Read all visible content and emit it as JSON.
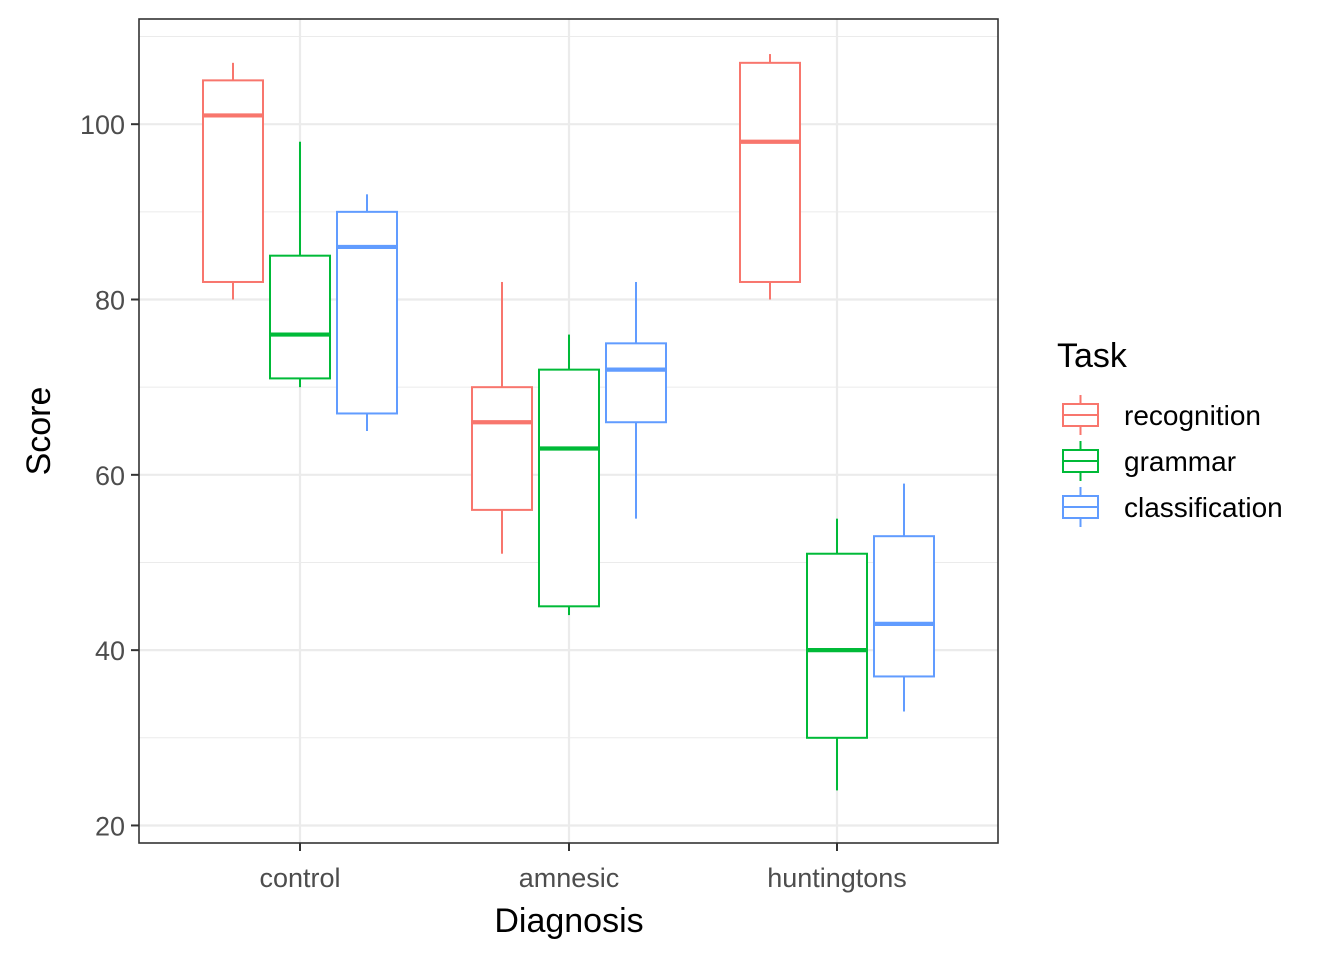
{
  "chart_data": {
    "type": "boxplot",
    "title": "",
    "xlabel": "Diagnosis",
    "ylabel": "Score",
    "ylim": [
      18,
      112
    ],
    "y_ticks": [
      20,
      40,
      60,
      80,
      100
    ],
    "y_minor_ticks": [
      30,
      50,
      70,
      90,
      110
    ],
    "categories": [
      "control",
      "amnesic",
      "huntingtons"
    ],
    "legend": {
      "title": "Task",
      "placement": "right"
    },
    "series": [
      {
        "name": "recognition",
        "color": "#F8766D",
        "boxes": [
          {
            "category": "control",
            "min": 80,
            "q1": 82,
            "median": 101,
            "q3": 105,
            "max": 107
          },
          {
            "category": "amnesic",
            "min": 51,
            "q1": 56,
            "median": 66,
            "q3": 70,
            "max": 82
          },
          {
            "category": "huntingtons",
            "min": 80,
            "q1": 82,
            "median": 98,
            "q3": 107,
            "max": 108
          }
        ]
      },
      {
        "name": "grammar",
        "color": "#00BA38",
        "boxes": [
          {
            "category": "control",
            "min": 70,
            "q1": 71,
            "median": 76,
            "q3": 85,
            "max": 98
          },
          {
            "category": "amnesic",
            "min": 44,
            "q1": 45,
            "median": 63,
            "q3": 72,
            "max": 76
          },
          {
            "category": "huntingtons",
            "min": 24,
            "q1": 30,
            "median": 40,
            "q3": 51,
            "max": 55
          }
        ]
      },
      {
        "name": "classification",
        "color": "#619CFF",
        "boxes": [
          {
            "category": "control",
            "min": 65,
            "q1": 67,
            "median": 86,
            "q3": 90,
            "max": 92
          },
          {
            "category": "amnesic",
            "min": 55,
            "q1": 66,
            "median": 72,
            "q3": 75,
            "max": 82
          },
          {
            "category": "huntingtons",
            "min": 33,
            "q1": 37,
            "median": 43,
            "q3": 53,
            "max": 59
          }
        ]
      }
    ]
  }
}
